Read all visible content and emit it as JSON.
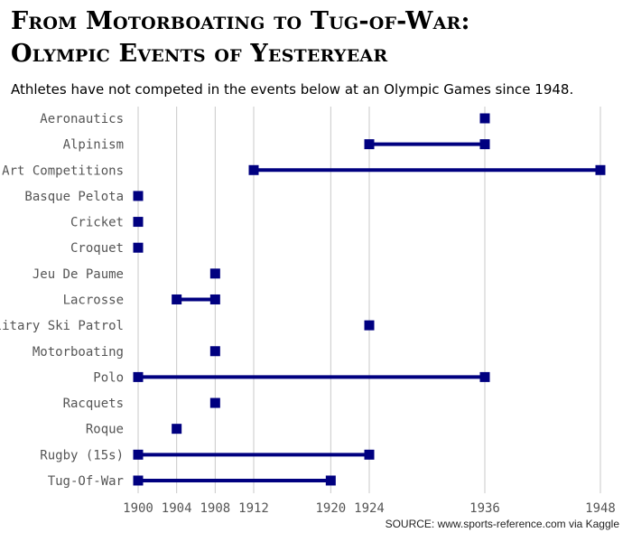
{
  "title_lines": [
    "From Motorboating to Tug-of-War:",
    "Olympic Events of Yesteryear"
  ],
  "subtitle": "Athletes have not competed in the events below at an Olympic Games since 1948.",
  "source": "SOURCE: www.sports-reference.com via Kaggle",
  "colors": {
    "mark": "#000080",
    "grid": "#c8c8c8",
    "label": "#555555"
  },
  "chart_data": {
    "type": "dumbbell",
    "title": "From Motorboating to Tug-of-War: Olympic Events of Yesteryear",
    "subtitle": "Athletes have not competed in the events below at an Olympic Games since 1948.",
    "xlabel": "",
    "ylabel": "",
    "x_ticks": [
      1900,
      1904,
      1908,
      1912,
      1920,
      1924,
      1936,
      1948
    ],
    "xlim": [
      1900,
      1948
    ],
    "grid": "vertical",
    "categories": [
      "Aeronautics",
      "Alpinism",
      "Art Competitions",
      "Basque Pelota",
      "Cricket",
      "Croquet",
      "Jeu De Paume",
      "Lacrosse",
      "Military Ski Patrol",
      "Motorboating",
      "Polo",
      "Racquets",
      "Roque",
      "Rugby (15s)",
      "Tug-Of-War"
    ],
    "series": [
      {
        "name": "",
        "start": [
          1936,
          1924,
          1912,
          1900,
          1900,
          1900,
          1908,
          1904,
          1924,
          1908,
          1900,
          1908,
          1904,
          1900,
          1900
        ],
        "end": [
          1936,
          1936,
          1948,
          1900,
          1900,
          1900,
          1908,
          1908,
          1924,
          1908,
          1936,
          1908,
          1904,
          1924,
          1920
        ]
      }
    ]
  }
}
